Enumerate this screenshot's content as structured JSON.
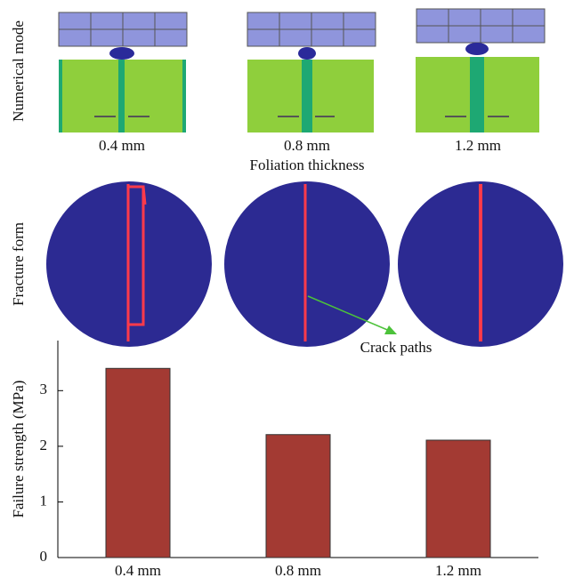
{
  "numerical_mode": {
    "label": "Numerical mode",
    "thicknesses": [
      "0.4 mm",
      "0.8 mm",
      "1.2 mm"
    ],
    "axis_label": "Foliation thickness"
  },
  "fracture_form": {
    "label": "Fracture form",
    "annotation": "Crack paths"
  },
  "chart_data": {
    "type": "bar",
    "ylabel": "Failure strength (MPa)",
    "categories": [
      "0.4 mm",
      "0.8 mm",
      "1.2 mm"
    ],
    "values": [
      3.4,
      2.21,
      2.11
    ],
    "color": "#a33a33",
    "ylim": [
      0,
      3.9
    ],
    "yticks": [
      0,
      1,
      2,
      3
    ]
  }
}
